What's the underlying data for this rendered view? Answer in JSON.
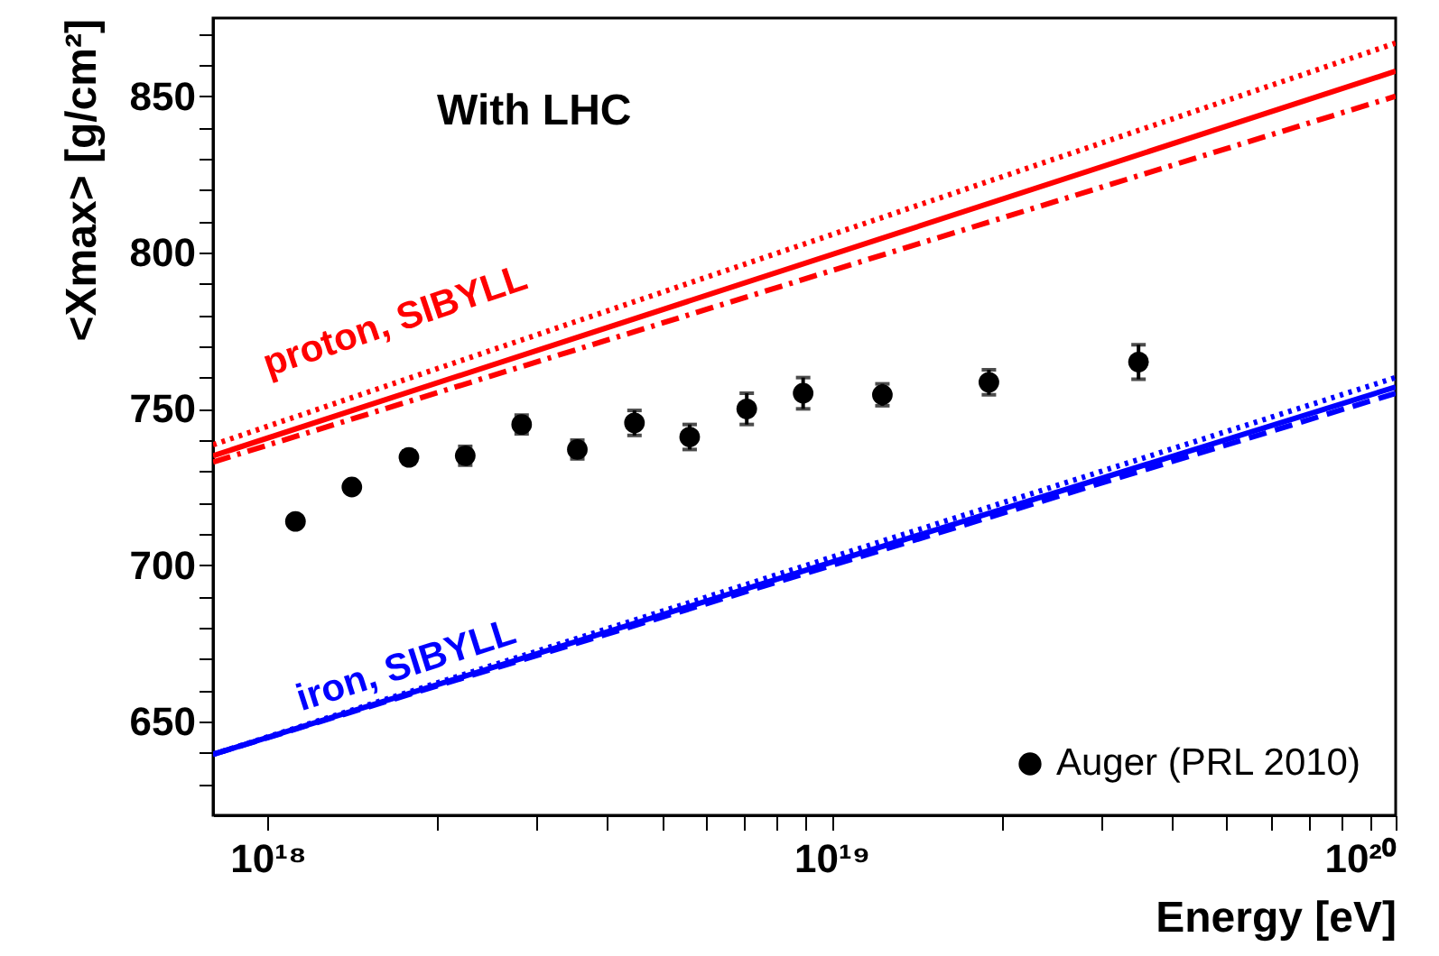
{
  "chart_data": {
    "type": "scatter",
    "title": "With LHC",
    "xlabel": "Energy    [eV]",
    "ylabel": "<Xmax>   [g/cm²]",
    "log": "x",
    "grid": false,
    "legend": "bottom right",
    "xlim": [
      8e+17,
      1e+20
    ],
    "ylim": [
      620,
      875
    ],
    "xticks": [
      {
        "value": 1e+18,
        "label": "10¹⁸"
      },
      {
        "value": 2e+18,
        "label": null
      },
      {
        "value": 3e+18,
        "label": null
      },
      {
        "value": 4e+18,
        "label": null
      },
      {
        "value": 5e+18,
        "label": null
      },
      {
        "value": 6e+18,
        "label": null
      },
      {
        "value": 7e+18,
        "label": null
      },
      {
        "value": 8e+18,
        "label": null
      },
      {
        "value": 9e+18,
        "label": null
      },
      {
        "value": 1e+19,
        "label": "10¹⁹"
      },
      {
        "value": 2e+19,
        "label": null
      },
      {
        "value": 3e+19,
        "label": null
      },
      {
        "value": 4e+19,
        "label": null
      },
      {
        "value": 5e+19,
        "label": null
      },
      {
        "value": 6e+19,
        "label": null
      },
      {
        "value": 7e+19,
        "label": null
      },
      {
        "value": 8e+19,
        "label": null
      },
      {
        "value": 9e+19,
        "label": null
      },
      {
        "value": 1e+20,
        "label": "10²⁰"
      }
    ],
    "yticks": [
      {
        "value": 630,
        "label": null
      },
      {
        "value": 640,
        "label": null
      },
      650,
      {
        "value": 660,
        "label": null
      },
      {
        "value": 670,
        "label": null
      },
      {
        "value": 680,
        "label": null
      },
      {
        "value": 690,
        "label": null
      },
      700,
      {
        "value": 710,
        "label": null
      },
      {
        "value": 720,
        "label": null
      },
      {
        "value": 730,
        "label": null
      },
      {
        "value": 740,
        "label": null
      },
      750,
      {
        "value": 760,
        "label": null
      },
      {
        "value": 770,
        "label": null
      },
      {
        "value": 780,
        "label": null
      },
      {
        "value": 790,
        "label": null
      },
      800,
      {
        "value": 810,
        "label": null
      },
      {
        "value": 820,
        "label": null
      },
      {
        "value": 830,
        "label": null
      },
      {
        "value": 840,
        "label": null
      },
      850,
      {
        "value": 860,
        "label": null
      },
      {
        "value": 870,
        "label": null
      }
    ],
    "series": [
      {
        "type": "line",
        "color": "#ff0000",
        "line_style": "dotted",
        "x": [
          8e+17,
          1e+20
        ],
        "values": [
          738.5,
          867
        ]
      },
      {
        "type": "line",
        "color": "#ff0000",
        "line_style": "solid",
        "x": [
          8e+17,
          1e+20
        ],
        "values": [
          735,
          858
        ]
      },
      {
        "type": "line",
        "color": "#ff0000",
        "line_style": "dashdot",
        "x": [
          8e+17,
          1e+20
        ],
        "values": [
          733,
          850
        ]
      },
      {
        "type": "line",
        "color": "#0000ff",
        "line_style": "dotted",
        "x": [
          8e+17,
          1e+20
        ],
        "values": [
          639.5,
          760
        ]
      },
      {
        "type": "line",
        "color": "#0000ff",
        "line_style": "solid",
        "x": [
          8e+17,
          1e+20
        ],
        "values": [
          639.5,
          757
        ]
      },
      {
        "type": "line",
        "color": "#0000ff",
        "line_style": "dashed",
        "x": [
          8e+17,
          1e+20
        ],
        "values": [
          639.5,
          755
        ]
      },
      {
        "name": "Auger (PRL 2010)",
        "color": "#000000",
        "marker": "circle",
        "x": [
          1.12e+18,
          1.41e+18,
          1.78e+18,
          2.24e+18,
          2.82e+18,
          3.54e+18,
          4.47e+18,
          5.6e+18,
          7.07e+18,
          8.9e+18,
          1.23e+19,
          1.9e+19,
          3.5e+19
        ],
        "values": [
          714,
          725,
          734.5,
          735,
          745,
          737,
          745.5,
          741,
          750,
          755,
          754.5,
          758.5,
          765
        ],
        "errors": [
          1.5,
          1.5,
          2,
          3,
          3,
          3,
          4,
          4,
          5,
          5,
          3.5,
          4,
          5.5
        ]
      }
    ],
    "annotations": [
      "proton, SIBYLL",
      "iron, SIBYLL"
    ]
  }
}
